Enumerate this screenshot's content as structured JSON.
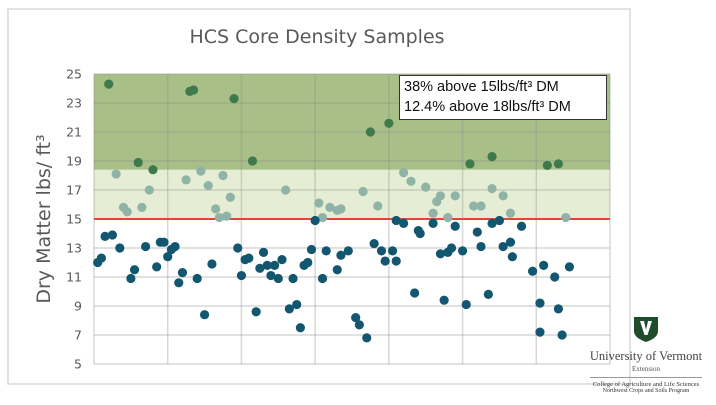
{
  "chart_data": {
    "type": "scatter",
    "title": "HCS Core Density Samples",
    "xlabel": "",
    "ylabel": "Dry Matter lbs/ ft³",
    "xlim": [
      0,
      140
    ],
    "ylim": [
      5,
      25
    ],
    "yticks": [
      5,
      7,
      9,
      11,
      13,
      15,
      17,
      19,
      21,
      23,
      25
    ],
    "x_gridlines": 7,
    "grid": true,
    "threshold_line": {
      "y": 15,
      "color": "#e0443a"
    },
    "bands": [
      {
        "from": 15,
        "to": 18.4,
        "color": "#e5eed5"
      },
      {
        "from": 18.4,
        "to": 25,
        "color": "#a9bf88"
      }
    ],
    "annotation": [
      "38% above 15lbs/ft³ DM",
      "12.4% above 18lbs/ft³ DM"
    ],
    "series": [
      {
        "color": "#3f7a4c",
        "points": [
          [
            4,
            24.3
          ],
          [
            26,
            23.8
          ],
          [
            27,
            23.9
          ],
          [
            38,
            23.3
          ],
          [
            12,
            18.9
          ],
          [
            16,
            18.4
          ],
          [
            43,
            19.0
          ],
          [
            75,
            21.0
          ],
          [
            80,
            21.6
          ],
          [
            102,
            18.8
          ],
          [
            108,
            19.3
          ],
          [
            123,
            18.7
          ],
          [
            126,
            18.8
          ]
        ]
      },
      {
        "color": "#8fb3a6",
        "points": [
          [
            6,
            18.1
          ],
          [
            8,
            15.8
          ],
          [
            9,
            15.5
          ],
          [
            13,
            15.8
          ],
          [
            15,
            17.0
          ],
          [
            25,
            17.7
          ],
          [
            29,
            18.3
          ],
          [
            31,
            17.3
          ],
          [
            35,
            18.0
          ],
          [
            37,
            16.5
          ],
          [
            33,
            15.7
          ],
          [
            34,
            15.1
          ],
          [
            36,
            15.2
          ],
          [
            52,
            17.0
          ],
          [
            61,
            16.1
          ],
          [
            62,
            15.1
          ],
          [
            64,
            15.8
          ],
          [
            66,
            15.6
          ],
          [
            67,
            15.7
          ],
          [
            73,
            16.9
          ],
          [
            77,
            15.9
          ],
          [
            84,
            18.2
          ],
          [
            86,
            17.6
          ],
          [
            90,
            17.2
          ],
          [
            93,
            16.2
          ],
          [
            94,
            16.6
          ],
          [
            92,
            15.4
          ],
          [
            96,
            15.1
          ],
          [
            98,
            16.6
          ],
          [
            103,
            15.9
          ],
          [
            105,
            15.9
          ],
          [
            108,
            17.1
          ],
          [
            111,
            16.6
          ],
          [
            113,
            15.4
          ],
          [
            128,
            15.1
          ]
        ]
      },
      {
        "color": "#12566f",
        "points": [
          [
            1,
            12.0
          ],
          [
            2,
            12.3
          ],
          [
            3,
            13.8
          ],
          [
            5,
            13.9
          ],
          [
            7,
            13.0
          ],
          [
            10,
            10.9
          ],
          [
            11,
            11.5
          ],
          [
            14,
            13.1
          ],
          [
            17,
            11.7
          ],
          [
            18,
            13.4
          ],
          [
            19,
            13.4
          ],
          [
            20,
            12.4
          ],
          [
            21,
            12.9
          ],
          [
            22,
            13.1
          ],
          [
            23,
            10.6
          ],
          [
            24,
            11.3
          ],
          [
            28,
            10.9
          ],
          [
            30,
            8.4
          ],
          [
            32,
            11.9
          ],
          [
            39,
            13.0
          ],
          [
            40,
            11.1
          ],
          [
            41,
            12.2
          ],
          [
            42,
            12.3
          ],
          [
            44,
            8.6
          ],
          [
            45,
            11.6
          ],
          [
            46,
            12.7
          ],
          [
            47,
            11.8
          ],
          [
            48,
            11.1
          ],
          [
            49,
            11.8
          ],
          [
            50,
            10.9
          ],
          [
            51,
            12.2
          ],
          [
            53,
            8.8
          ],
          [
            54,
            10.9
          ],
          [
            55,
            9.1
          ],
          [
            56,
            7.5
          ],
          [
            57,
            11.8
          ],
          [
            58,
            12.0
          ],
          [
            59,
            12.9
          ],
          [
            60,
            14.9
          ],
          [
            62,
            10.9
          ],
          [
            63,
            12.8
          ],
          [
            66,
            11.5
          ],
          [
            67,
            12.5
          ],
          [
            69,
            12.8
          ],
          [
            71,
            8.2
          ],
          [
            72,
            7.7
          ],
          [
            74,
            6.8
          ],
          [
            76,
            13.3
          ],
          [
            78,
            12.8
          ],
          [
            79,
            12.1
          ],
          [
            81,
            12.8
          ],
          [
            82,
            14.9
          ],
          [
            82,
            12.1
          ],
          [
            84,
            14.7
          ],
          [
            87,
            9.9
          ],
          [
            88,
            14.2
          ],
          [
            88.5,
            14.0
          ],
          [
            92,
            14.7
          ],
          [
            94,
            12.6
          ],
          [
            95,
            9.4
          ],
          [
            96,
            12.7
          ],
          [
            97,
            13.0
          ],
          [
            98,
            14.5
          ],
          [
            100,
            12.8
          ],
          [
            101,
            9.1
          ],
          [
            104,
            14.1
          ],
          [
            105,
            13.1
          ],
          [
            107,
            9.8
          ],
          [
            108,
            14.7
          ],
          [
            110,
            14.9
          ],
          [
            111,
            13.1
          ],
          [
            113,
            13.4
          ],
          [
            113.5,
            12.4
          ],
          [
            116,
            14.5
          ],
          [
            119,
            11.4
          ],
          [
            121,
            9.2
          ],
          [
            122,
            11.8
          ],
          [
            125,
            11.0
          ],
          [
            126,
            8.8
          ],
          [
            129,
            11.7
          ],
          [
            121,
            7.2
          ],
          [
            127,
            7.0
          ]
        ]
      }
    ]
  },
  "logo": {
    "name": "University of Vermont",
    "sub": "Extension",
    "college": "College of Agriculture and Life Sciences",
    "program": "Northwest Crops and Soils Program",
    "color": "#1f4d2b"
  }
}
